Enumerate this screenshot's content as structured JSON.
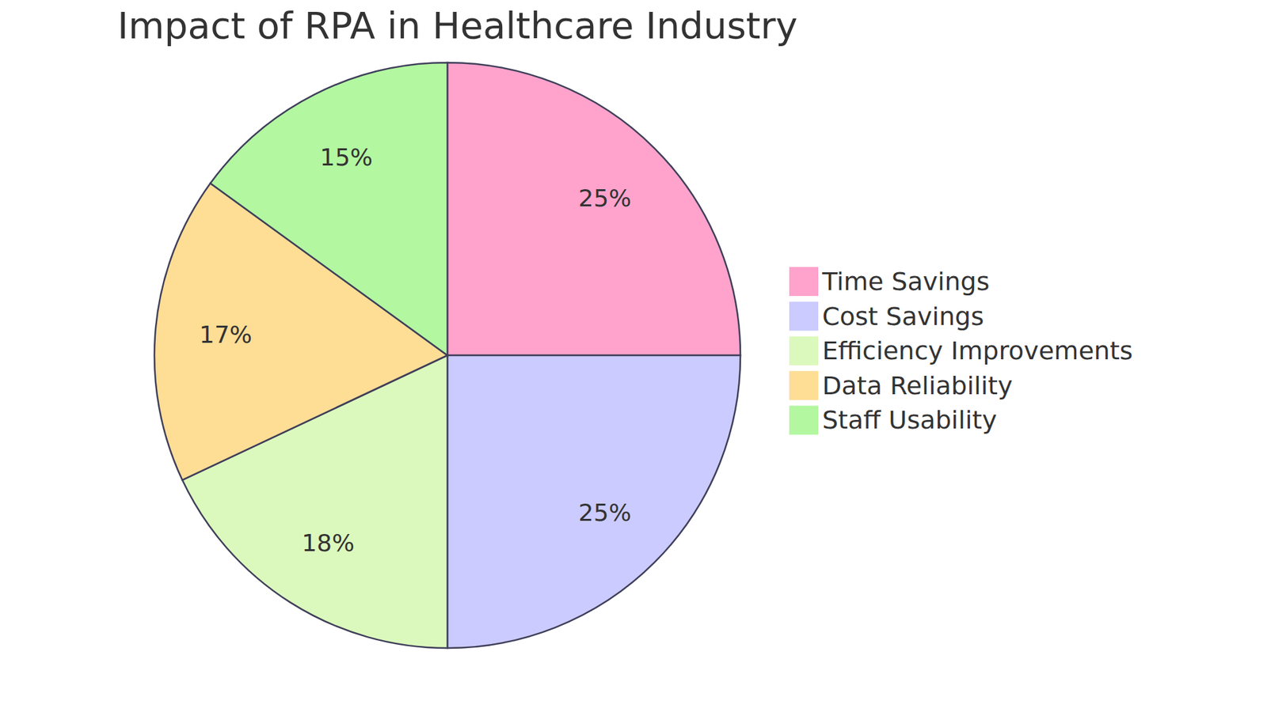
{
  "chart_data": {
    "type": "pie",
    "title": "Impact of RPA in Healthcare Industry",
    "categories": [
      "Time Savings",
      "Cost Savings",
      "Efficiency Improvements",
      "Data Reliability",
      "Staff Usability"
    ],
    "values": [
      25,
      25,
      18,
      17,
      15
    ],
    "value_labels": [
      "25%",
      "25%",
      "18%",
      "17%",
      "15%"
    ],
    "colors": [
      "#ffa3cc",
      "#cbcbff",
      "#dcf9bd",
      "#fedd95",
      "#b3f7a1"
    ],
    "data_labels": true,
    "legend": "right"
  }
}
